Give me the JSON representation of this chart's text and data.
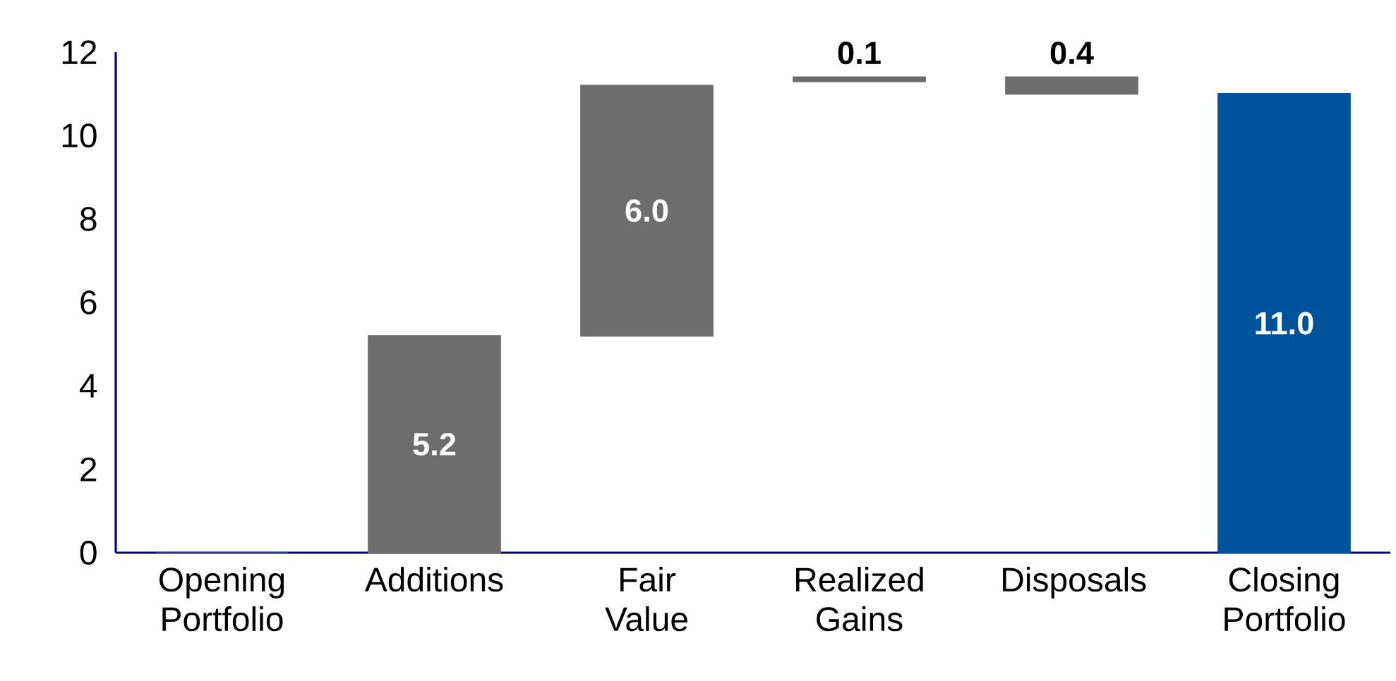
{
  "chart_data": {
    "type": "bar",
    "categories": [
      "Opening Portfolio",
      "Additions",
      "Fair Value",
      "Realized Gains",
      "Disposals",
      "Closing Portfolio"
    ],
    "values": [
      0,
      5.2,
      6.0,
      0.1,
      -0.4,
      11.0
    ],
    "base": [
      null,
      null,
      5.2,
      11.3,
      11.4,
      null
    ],
    "colors": [
      "#1f3c88",
      "#6d6d6d",
      "#6d6d6d",
      "#6d6d6d",
      "#6d6d6d",
      "#00529b"
    ],
    "value_labels": [
      null,
      "5.2",
      "6.0",
      "0.1",
      "0.4",
      "11.0"
    ],
    "ylim": [
      0,
      12
    ],
    "yticks": [
      0,
      2,
      4,
      6,
      8,
      10,
      12
    ],
    "grid": false
  }
}
